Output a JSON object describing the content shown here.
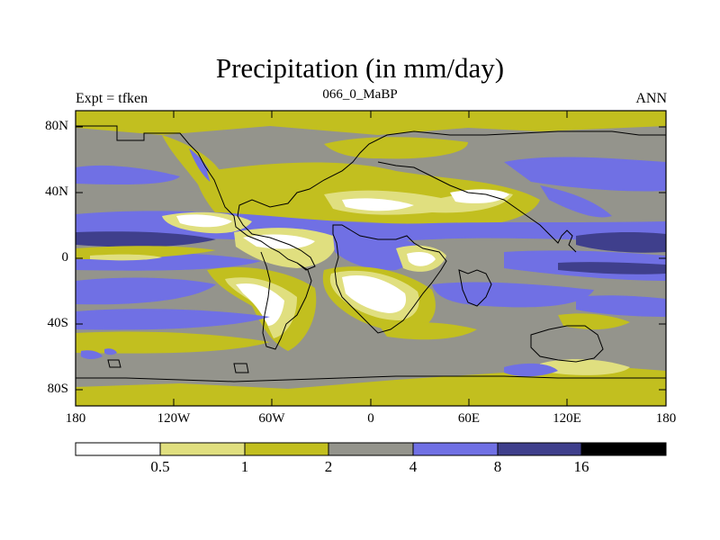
{
  "title": "Precipitation (in mm/day)",
  "subtitle_left": "Expt = tfken",
  "subtitle_center": "066_0_MaBP",
  "subtitle_right": "ANN",
  "y_ticks": [
    "80N",
    "40N",
    "0",
    "40S",
    "80S"
  ],
  "x_ticks": [
    "180",
    "120W",
    "60W",
    "0",
    "60E",
    "120E",
    "180"
  ],
  "colorbar": {
    "boundaries": [
      "0.5",
      "1",
      "2",
      "4",
      "8",
      "16"
    ],
    "colors": [
      "#ffffff",
      "#e0df7f",
      "#c2bf1f",
      "#94948c",
      "#7070e4",
      "#3f3f8c",
      "#000000"
    ]
  }
}
